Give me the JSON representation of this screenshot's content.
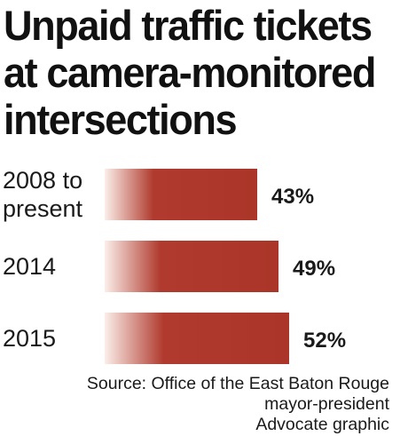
{
  "title_lines": [
    "Unpaid traffic tickets",
    "at camera-monitored",
    "intersections"
  ],
  "chart_data": {
    "type": "bar",
    "orientation": "horizontal",
    "title": "Unpaid traffic tickets at camera-monitored intersections",
    "categories": [
      [
        "2008 to",
        "present"
      ],
      [
        "2014"
      ],
      [
        "2015"
      ]
    ],
    "values": [
      43,
      49,
      52
    ],
    "value_labels": [
      "43%",
      "49%",
      "52%"
    ],
    "unit": "%",
    "grid": false,
    "legend": "none",
    "bar_color": "#b03a2e"
  },
  "source_lines": [
    "Source: Office of the East Baton Rouge",
    "mayor-president",
    "Advocate graphic"
  ]
}
